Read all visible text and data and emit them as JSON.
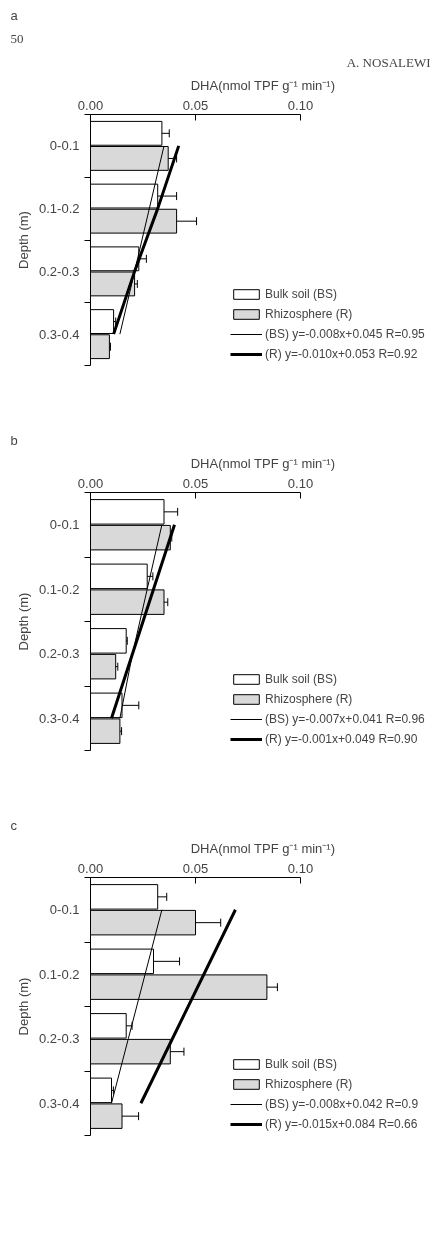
{
  "chart_data": [
    {
      "type": "bar",
      "orientation": "horizontal",
      "title": "a",
      "xlabel": "DHA(nmol TPF g⁻¹ min⁻¹)",
      "ylabel": "Depth (m)",
      "annotations": [
        "50",
        "A. NOSALEWI"
      ],
      "categories": [
        "0-0.1",
        "0.1-0.2",
        "0.2-0.3",
        "0.3-0.4"
      ],
      "xlim": [
        0,
        0.1
      ],
      "xticks": [
        {
          "value": 0,
          "label": "0.00"
        },
        {
          "value": 0.05,
          "label": "0.05"
        },
        {
          "value": 0.1,
          "label": "0.10"
        }
      ],
      "legend": "bottom right",
      "series": [
        {
          "type": "bar",
          "name": "Bulk soil (BS)",
          "color": "#ffffff",
          "values": [
            0.034,
            0.032,
            0.023,
            0.011
          ],
          "errors": [
            0.0035,
            0.009,
            0.0036,
            0.001
          ]
        },
        {
          "type": "bar",
          "name": "Rhizosphere (R)",
          "color": "#d9d9d9",
          "values": [
            0.037,
            0.041,
            0.021,
            0.009
          ],
          "errors": [
            0.004,
            0.0095,
            0.0013,
            0.0005
          ]
        },
        {
          "type": "line",
          "name": "(BS) y=-0.008x+0.045 R=0.95",
          "color": "#000000",
          "values": [
            0.035,
            0.028,
            0.021,
            0.014
          ]
        },
        {
          "type": "line",
          "name": "(R) y=-0.010x+0.053 R=0.92",
          "color": "#000000",
          "values": [
            0.042,
            0.032,
            0.021,
            0.011
          ]
        }
      ]
    },
    {
      "type": "bar",
      "orientation": "horizontal",
      "title": "b",
      "xlabel": "DHA(nmol TPF g⁻¹ min⁻¹)",
      "ylabel": "Depth (m)",
      "categories": [
        "0-0.1",
        "0.1-0.2",
        "0.2-0.3",
        "0.3-0.4"
      ],
      "xlim": [
        0,
        0.1
      ],
      "xticks": [
        {
          "value": 0,
          "label": "0.00"
        },
        {
          "value": 0.05,
          "label": "0.05"
        },
        {
          "value": 0.1,
          "label": "0.10"
        }
      ],
      "legend": "bottom right",
      "series": [
        {
          "type": "bar",
          "name": "Bulk soil (BS)",
          "color": "#ffffff",
          "values": [
            0.035,
            0.027,
            0.017,
            0.015
          ],
          "errors": [
            0.0065,
            0.0027,
            0.0005,
            0.008
          ]
        },
        {
          "type": "bar",
          "name": "Rhizosphere (R)",
          "color": "#d9d9d9",
          "values": [
            0.038,
            0.035,
            0.012,
            0.014
          ],
          "errors": [
            0.0007,
            0.0018,
            0.001,
            0.0008
          ]
        },
        {
          "type": "line",
          "name": "(BS) y=-0.007x+0.041 R=0.96",
          "color": "#000000",
          "values": [
            0.034,
            0.027,
            0.02,
            0.014
          ]
        },
        {
          "type": "line",
          "name": "(R) y=-0.001x+0.049 R=0.90",
          "color": "#000000",
          "values": [
            0.04,
            0.03,
            0.02,
            0.01
          ]
        }
      ]
    },
    {
      "type": "bar",
      "orientation": "horizontal",
      "title": "c",
      "xlabel": "DHA(nmol TPF g⁻¹ min⁻¹)",
      "ylabel": "Depth (m)",
      "categories": [
        "0-0.1",
        "0.1-0.2",
        "0.2-0.3",
        "0.3-0.4"
      ],
      "xlim": [
        0,
        0.1
      ],
      "xticks": [
        {
          "value": 0,
          "label": "0.00"
        },
        {
          "value": 0.05,
          "label": "0.05"
        },
        {
          "value": 0.1,
          "label": "0.10"
        }
      ],
      "legend": "bottom right",
      "series": [
        {
          "type": "bar",
          "name": "Bulk soil (BS)",
          "color": "#ffffff",
          "values": [
            0.032,
            0.03,
            0.017,
            0.01
          ],
          "errors": [
            0.0043,
            0.0124,
            0.0028,
            0.0009
          ]
        },
        {
          "type": "bar",
          "name": "Rhizosphere (R)",
          "color": "#d9d9d9",
          "values": [
            0.05,
            0.084,
            0.038,
            0.015
          ],
          "errors": [
            0.012,
            0.005,
            0.0065,
            0.0079
          ]
        },
        {
          "type": "line",
          "name": "(BS) y=-0.008x+0.042 R=0.9",
          "color": "#000000",
          "values": [
            0.034,
            0.026,
            0.018,
            0.01
          ]
        },
        {
          "type": "line",
          "name": "(R) y=-0.015x+0.084 R=0.66",
          "color": "#000000",
          "values": [
            0.069,
            0.054,
            0.039,
            0.024
          ]
        }
      ]
    }
  ]
}
